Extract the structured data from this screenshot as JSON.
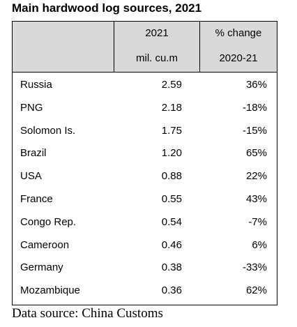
{
  "title": "Main hardwood log sources, 2021",
  "header": {
    "col2_line1": "2021",
    "col2_line2": "mil. cu.m",
    "col3_line1": "% change",
    "col3_line2": "2020-21"
  },
  "chart_data": {
    "type": "table",
    "title": "Main hardwood log sources, 2021",
    "columns": [
      "",
      "2021 mil. cu.m",
      "% change 2020-21"
    ],
    "rows": [
      {
        "country": "Russia",
        "volume": "2.59",
        "change": "36%"
      },
      {
        "country": "PNG",
        "volume": "2.18",
        "change": "-18%"
      },
      {
        "country": "Solomon Is.",
        "volume": "1.75",
        "change": "-15%"
      },
      {
        "country": "Brazil",
        "volume": "1.20",
        "change": "65%"
      },
      {
        "country": "USA",
        "volume": "0.88",
        "change": "22%"
      },
      {
        "country": "France",
        "volume": "0.55",
        "change": "43%"
      },
      {
        "country": "Congo Rep.",
        "volume": "0.54",
        "change": "-7%"
      },
      {
        "country": "Cameroon",
        "volume": "0.46",
        "change": "6%"
      },
      {
        "country": "Germany",
        "volume": "0.38",
        "change": "-33%"
      },
      {
        "country": "Mozambique",
        "volume": "0.36",
        "change": "62%"
      }
    ]
  },
  "source": "Data source: China Customs"
}
